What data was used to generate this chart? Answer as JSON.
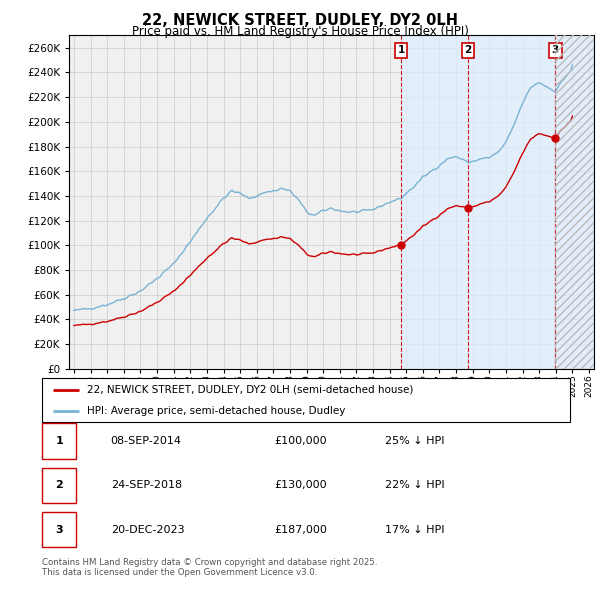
{
  "title": "22, NEWICK STREET, DUDLEY, DY2 0LH",
  "subtitle": "Price paid vs. HM Land Registry's House Price Index (HPI)",
  "hpi_color": "#7ab3d4",
  "price_color": "#cc0000",
  "ylim": [
    0,
    270000
  ],
  "yticks": [
    0,
    20000,
    40000,
    60000,
    80000,
    100000,
    120000,
    140000,
    160000,
    180000,
    200000,
    220000,
    240000,
    260000
  ],
  "xlim_start": 1994.7,
  "xlim_end": 2026.3,
  "transactions": [
    {
      "num": 1,
      "date": "08-SEP-2014",
      "price": 100000,
      "pct": "25%",
      "direction": "↓",
      "year_x": 2014.69
    },
    {
      "num": 2,
      "date": "24-SEP-2018",
      "price": 130000,
      "pct": "22%",
      "direction": "↓",
      "year_x": 2018.73
    },
    {
      "num": 3,
      "date": "20-DEC-2023",
      "price": 187000,
      "pct": "17%",
      "direction": "↓",
      "year_x": 2023.97
    }
  ],
  "legend_house_label": "22, NEWICK STREET, DUDLEY, DY2 0LH (semi-detached house)",
  "legend_hpi_label": "HPI: Average price, semi-detached house, Dudley",
  "footnote": "Contains HM Land Registry data © Crown copyright and database right 2025.\nThis data is licensed under the Open Government Licence v3.0."
}
